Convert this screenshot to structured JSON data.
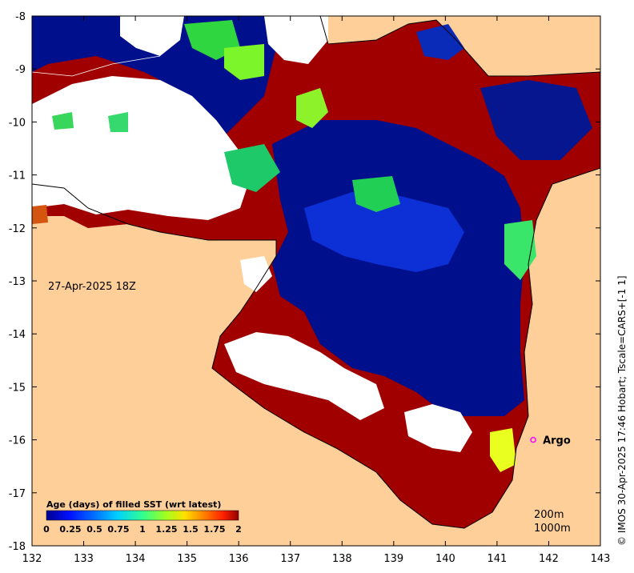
{
  "map": {
    "date_label": "27-Apr-2025 18Z",
    "credit": "© IMOS 30-Apr-2025 17:46 Hobart; Tscale=CARS+[-1 1]",
    "x_ticks": [
      "132",
      "133",
      "134",
      "135",
      "136",
      "137",
      "138",
      "139",
      "140",
      "141",
      "142",
      "143"
    ],
    "y_ticks": [
      "-8",
      "-9",
      "-10",
      "-11",
      "-12",
      "-13",
      "-14",
      "-15",
      "-16",
      "-17",
      "-18"
    ],
    "extent": {
      "lon": [
        132,
        143
      ],
      "lat": [
        -18,
        -8
      ]
    },
    "argo": {
      "label": "Argo",
      "lon": 141.7,
      "lat": -16.0,
      "color": "#ff00ff"
    },
    "contours": [
      "200m",
      "1000m"
    ],
    "colorbar": {
      "title": "Age (days) of filled SST (wrt latest)",
      "ticks": [
        "0",
        "0.25",
        "0.5",
        "0.75",
        "1",
        "1.25",
        "1.5",
        "1.75",
        "2"
      ],
      "colors": [
        "#00008f",
        "#0010ff",
        "#0070ff",
        "#00d0ff",
        "#30ff90",
        "#a0ff20",
        "#ffe000",
        "#ff8000",
        "#ff2000",
        "#900000"
      ]
    },
    "colors": {
      "land": "#ffcf99",
      "no_data": "#ffffff",
      "fresh": "#000f8c",
      "stale": "#a00000"
    }
  }
}
